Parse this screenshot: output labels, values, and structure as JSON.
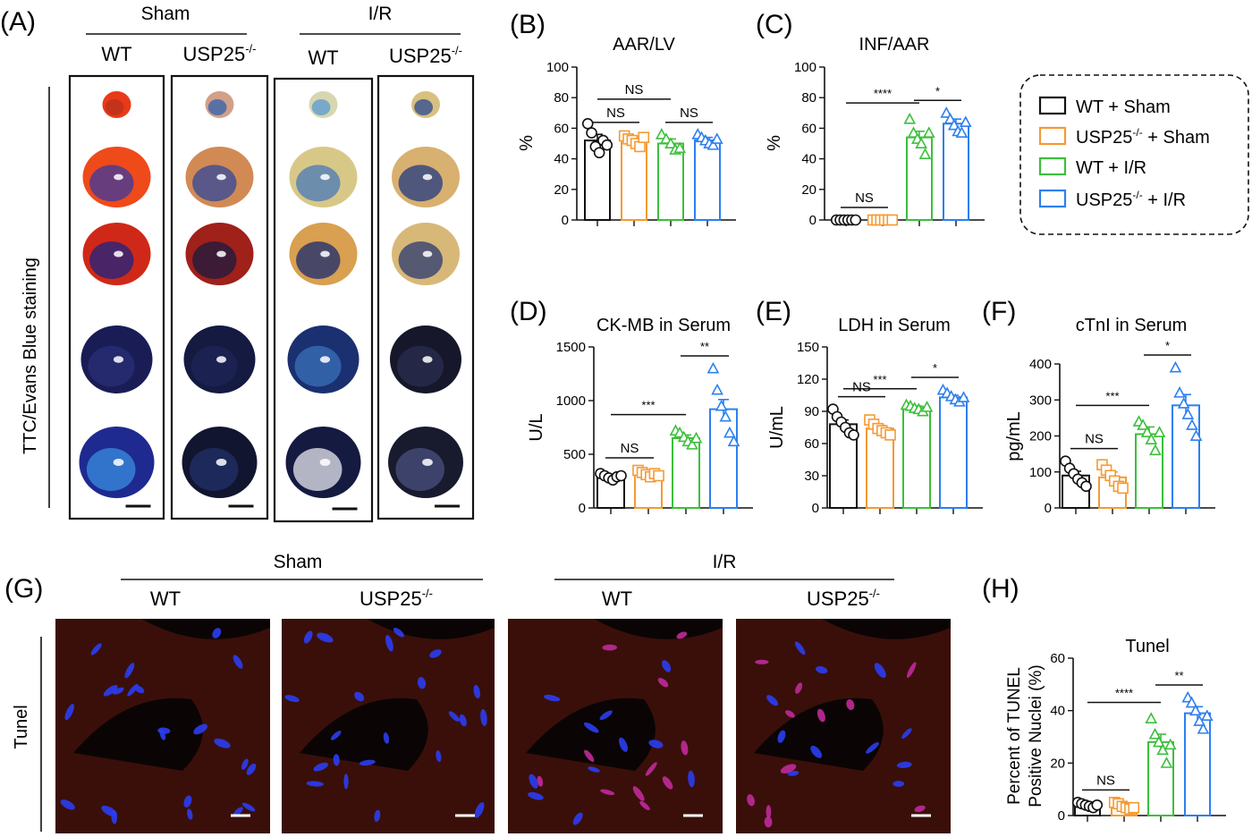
{
  "panel_labels": {
    "A": "(A)",
    "B": "(B)",
    "C": "(C)",
    "D": "(D)",
    "E": "(E)",
    "F": "(F)",
    "G": "(G)",
    "H": "(H)"
  },
  "colors": {
    "wt_sham": "#111111",
    "usp_sham": "#f59a32",
    "wt_ir": "#3cbf3c",
    "usp_ir": "#2d7ff0"
  },
  "panelA": {
    "group_sham": "Sham",
    "group_ir": "I/R",
    "col_labels": [
      "WT",
      "USP25",
      "WT",
      "USP25"
    ],
    "ko_superscript": "-/-",
    "row_label": "TTC/Evans Blue staining",
    "slice_colors": [
      [
        [
          "#e83a18",
          "#b8321a"
        ],
        [
          "#ef4a1a",
          "#3a3aa0"
        ],
        [
          "#d02818",
          "#1c2380"
        ],
        [
          "#1a1d55",
          "#2a2f78"
        ],
        [
          "#1e2a90",
          "#3a8ee0"
        ]
      ],
      [
        [
          "#d2a088",
          "#3060b0"
        ],
        [
          "#d28a55",
          "#30479a"
        ],
        [
          "#a0201a",
          "#1a1a40"
        ],
        [
          "#141a40",
          "#1e2455"
        ],
        [
          "#12152f",
          "#20306a"
        ]
      ],
      [
        [
          "#d8d6b0",
          "#5a9ad0"
        ],
        [
          "#d8c888",
          "#4a7ab8"
        ],
        [
          "#d8a050",
          "#1a2a70"
        ],
        [
          "#1a3070",
          "#3a70b8"
        ],
        [
          "#141a40",
          "#e8e8f0"
        ]
      ],
      [
        [
          "#d8c080",
          "#2a4a90"
        ],
        [
          "#d8b070",
          "#223a80"
        ],
        [
          "#d8b878",
          "#2a3a70"
        ],
        [
          "#16172a",
          "#2a2f50"
        ],
        [
          "#181a2e",
          "#4a5080"
        ]
      ]
    ]
  },
  "panelG": {
    "group_sham": "Sham",
    "group_ir": "I/R",
    "col_labels": [
      "WT",
      "USP25",
      "WT",
      "USP25"
    ],
    "ko_superscript": "-/-",
    "row_label": "Tunel"
  },
  "legend": {
    "items": [
      {
        "label": "WT + Sham",
        "color": "#111111",
        "ko": false,
        "suffix": ""
      },
      {
        "label": "USP25",
        "color": "#f59a32",
        "ko": true,
        "suffix": " + Sham"
      },
      {
        "label": "WT + I/R",
        "color": "#3cbf3c",
        "ko": false,
        "suffix": ""
      },
      {
        "label": "USP25",
        "color": "#2d7ff0",
        "ko": true,
        "suffix": " + I/R"
      }
    ],
    "ko_superscript": "-/-"
  },
  "chart_data": [
    {
      "panel": "B",
      "type": "bar",
      "title": "AAR/LV",
      "ylabel": "%",
      "ylim": [
        0,
        100
      ],
      "yticks": [
        0,
        20,
        40,
        60,
        80,
        100
      ],
      "series": [
        {
          "name": "WT + Sham",
          "mean": 52,
          "sem": 4,
          "points": [
            63,
            57,
            48,
            44,
            52,
            49
          ]
        },
        {
          "name": "USP25-/- + Sham",
          "mean": 52,
          "sem": 2,
          "points": [
            55,
            53,
            52,
            50,
            48,
            54
          ]
        },
        {
          "name": "WT + I/R",
          "mean": 50,
          "sem": 3,
          "points": [
            56,
            53,
            50,
            46,
            47
          ]
        },
        {
          "name": "USP25-/- + I/R",
          "mean": 52,
          "sem": 2,
          "points": [
            56,
            54,
            52,
            50,
            49,
            53
          ]
        }
      ],
      "annotations": [
        {
          "from": 0,
          "to": 1,
          "label": "NS",
          "level": 0
        },
        {
          "from": 2,
          "to": 3,
          "label": "NS",
          "level": 0
        },
        {
          "from": 0,
          "to": 2,
          "label": "NS",
          "level": 1
        }
      ]
    },
    {
      "panel": "C",
      "type": "bar",
      "title": "INF/AAR",
      "ylabel": "%",
      "ylim": [
        0,
        100
      ],
      "yticks": [
        0,
        20,
        40,
        60,
        80,
        100
      ],
      "series": [
        {
          "name": "WT + Sham",
          "mean": 0,
          "sem": 0,
          "points": [
            0,
            0,
            0,
            0,
            0,
            0
          ]
        },
        {
          "name": "USP25-/- + Sham",
          "mean": 0,
          "sem": 0,
          "points": [
            0,
            0,
            0,
            0,
            0,
            0
          ]
        },
        {
          "name": "WT + I/R",
          "mean": 54,
          "sem": 4,
          "points": [
            66,
            57,
            53,
            50,
            43,
            57
          ]
        },
        {
          "name": "USP25-/- + I/R",
          "mean": 63,
          "sem": 3,
          "points": [
            70,
            66,
            62,
            58,
            57,
            64
          ]
        }
      ],
      "annotations": [
        {
          "from": 0,
          "to": 1,
          "label": "NS",
          "level": 0
        },
        {
          "from": 2,
          "to": 3,
          "label": "*",
          "level": 0
        },
        {
          "from": 0,
          "to": 2,
          "label": "****",
          "level": 1
        }
      ]
    },
    {
      "panel": "D",
      "type": "bar",
      "title": "CK-MB in Serum",
      "ylabel": "U/L",
      "ylim": [
        0,
        1500
      ],
      "yticks": [
        0,
        500,
        1000,
        1500
      ],
      "series": [
        {
          "name": "WT + Sham",
          "mean": 290,
          "sem": 20,
          "points": [
            320,
            300,
            280,
            260,
            290,
            300
          ]
        },
        {
          "name": "USP25-/- + Sham",
          "mean": 320,
          "sem": 20,
          "points": [
            350,
            330,
            310,
            290,
            320,
            300
          ]
        },
        {
          "name": "WT + I/R",
          "mean": 650,
          "sem": 30,
          "points": [
            720,
            700,
            660,
            620,
            590,
            650
          ]
        },
        {
          "name": "USP25-/- + I/R",
          "mean": 920,
          "sem": 90,
          "points": [
            1300,
            1100,
            950,
            850,
            700,
            620
          ]
        }
      ],
      "annotations": [
        {
          "from": 0,
          "to": 1,
          "label": "NS",
          "level": 0
        },
        {
          "from": 2,
          "to": 3,
          "label": "**",
          "level": 0
        },
        {
          "from": 0,
          "to": 2,
          "label": "***",
          "level": 1
        }
      ]
    },
    {
      "panel": "E",
      "type": "bar",
      "title": "LDH in Serum",
      "ylabel": "U/mL",
      "ylim": [
        0,
        150
      ],
      "yticks": [
        0,
        30,
        60,
        90,
        120,
        150
      ],
      "series": [
        {
          "name": "WT + Sham",
          "mean": 78,
          "sem": 4,
          "points": [
            92,
            85,
            80,
            75,
            70,
            68
          ]
        },
        {
          "name": "USP25-/- + Sham",
          "mean": 74,
          "sem": 3,
          "points": [
            82,
            78,
            74,
            72,
            70,
            68
          ]
        },
        {
          "name": "WT + I/R",
          "mean": 93,
          "sem": 2,
          "points": [
            96,
            95,
            93,
            92,
            90,
            94
          ]
        },
        {
          "name": "USP25-/- + I/R",
          "mean": 103,
          "sem": 2,
          "points": [
            110,
            107,
            104,
            101,
            99,
            103
          ]
        }
      ],
      "annotations": [
        {
          "from": 0,
          "to": 1,
          "label": "NS",
          "level": 0
        },
        {
          "from": 2,
          "to": 3,
          "label": "*",
          "level": 0
        },
        {
          "from": 0,
          "to": 2,
          "label": "***",
          "level": 1
        }
      ]
    },
    {
      "panel": "F",
      "type": "bar",
      "title": "cTnI in Serum",
      "ylabel": "pg/mL",
      "ylim": [
        0,
        450
      ],
      "yticks": [
        0,
        100,
        200,
        300,
        400
      ],
      "series": [
        {
          "name": "WT + Sham",
          "mean": 90,
          "sem": 12,
          "points": [
            130,
            110,
            95,
            80,
            70,
            60
          ]
        },
        {
          "name": "USP25-/- + Sham",
          "mean": 85,
          "sem": 15,
          "points": [
            120,
            105,
            90,
            75,
            60,
            55
          ]
        },
        {
          "name": "WT + I/R",
          "mean": 205,
          "sem": 20,
          "points": [
            240,
            230,
            210,
            190,
            160,
            210
          ]
        },
        {
          "name": "USP25-/- + I/R",
          "mean": 285,
          "sem": 30,
          "points": [
            390,
            320,
            290,
            260,
            230,
            200
          ]
        }
      ],
      "annotations": [
        {
          "from": 0,
          "to": 1,
          "label": "NS",
          "level": 0
        },
        {
          "from": 2,
          "to": 3,
          "label": "*",
          "level": 0
        },
        {
          "from": 0,
          "to": 2,
          "label": "***",
          "level": 1
        }
      ]
    },
    {
      "panel": "H",
      "type": "bar",
      "title": "Tunel",
      "ylabel": [
        "Percent of TUNEL",
        "Positive Nuclei (%)"
      ],
      "ylim": [
        0,
        60
      ],
      "yticks": [
        0,
        20,
        40,
        60
      ],
      "series": [
        {
          "name": "WT + Sham",
          "mean": 4,
          "sem": 0.6,
          "points": [
            5,
            4.5,
            4,
            3.5,
            3,
            4
          ]
        },
        {
          "name": "USP25-/- + Sham",
          "mean": 3.5,
          "sem": 0.8,
          "points": [
            5,
            4.5,
            3.5,
            3,
            2.5,
            3
          ]
        },
        {
          "name": "WT + I/R",
          "mean": 28,
          "sem": 3,
          "points": [
            37,
            31,
            28,
            25,
            20,
            27
          ]
        },
        {
          "name": "USP25-/- + I/R",
          "mean": 39,
          "sem": 2.5,
          "points": [
            45,
            43,
            40,
            36,
            33,
            38
          ]
        }
      ],
      "annotations": [
        {
          "from": 0,
          "to": 1,
          "label": "NS",
          "level": 0
        },
        {
          "from": 2,
          "to": 3,
          "label": "**",
          "level": 0
        },
        {
          "from": 0,
          "to": 2,
          "label": "****",
          "level": 1
        }
      ]
    }
  ]
}
